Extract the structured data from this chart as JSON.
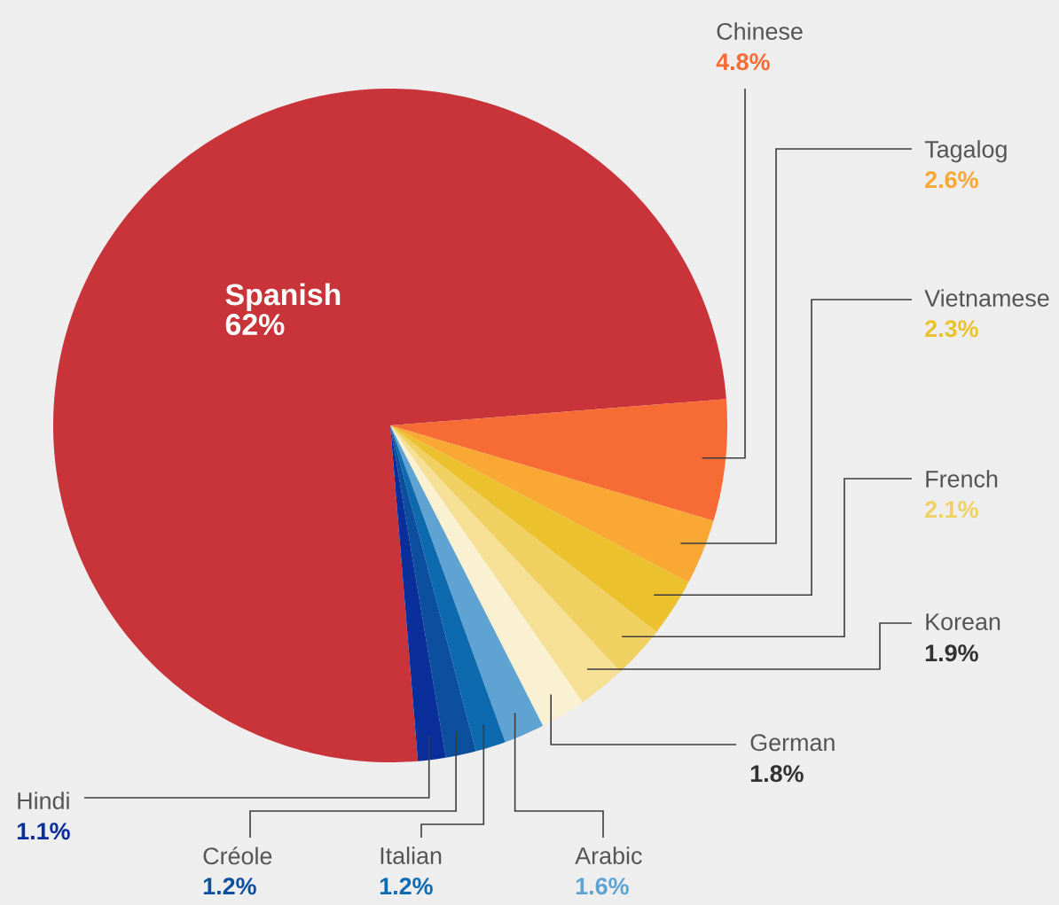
{
  "chart_data": {
    "type": "pie",
    "categories": [
      "Spanish",
      "Chinese",
      "Tagalog",
      "Vietnamese",
      "French",
      "Korean",
      "German",
      "Arabic",
      "Italian",
      "Créole",
      "Hindi"
    ],
    "values": [
      62,
      4.8,
      2.6,
      2.3,
      2.1,
      1.9,
      1.8,
      1.6,
      1.2,
      1.2,
      1.1
    ],
    "value_labels": [
      "62%",
      "4.8%",
      "2.6%",
      "2.3%",
      "2.1%",
      "1.9%",
      "1.8%",
      "1.6%",
      "1.2%",
      "1.2%",
      "1.1%"
    ],
    "colors": [
      "#c8343a",
      "#f66c34",
      "#f9a834",
      "#ebc22e",
      "#f0d060",
      "#f5e096",
      "#faf0d2",
      "#5fa3d3",
      "#0e6aaf",
      "#0b4f9e",
      "#0a2f9a"
    ]
  }
}
